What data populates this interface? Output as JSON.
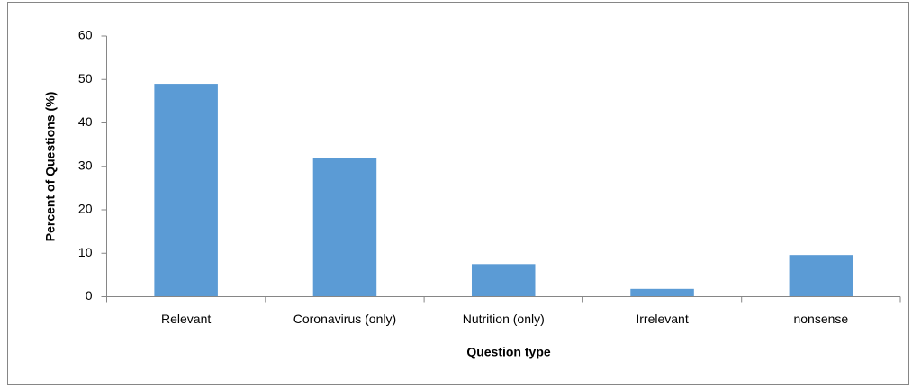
{
  "chart_data": {
    "type": "bar",
    "categories": [
      "Relevant",
      "Coronavirus (only)",
      "Nutrition (only)",
      "Irrelevant",
      "nonsense"
    ],
    "values": [
      49,
      32,
      7.5,
      1.8,
      9.6
    ],
    "color": "#5b9bd5",
    "xlabel": "Question type",
    "ylabel": "Percent of Questions (%)",
    "ylim": [
      0,
      60
    ],
    "yticks": [
      0,
      10,
      20,
      30,
      40,
      50,
      60
    ],
    "grid": false
  }
}
